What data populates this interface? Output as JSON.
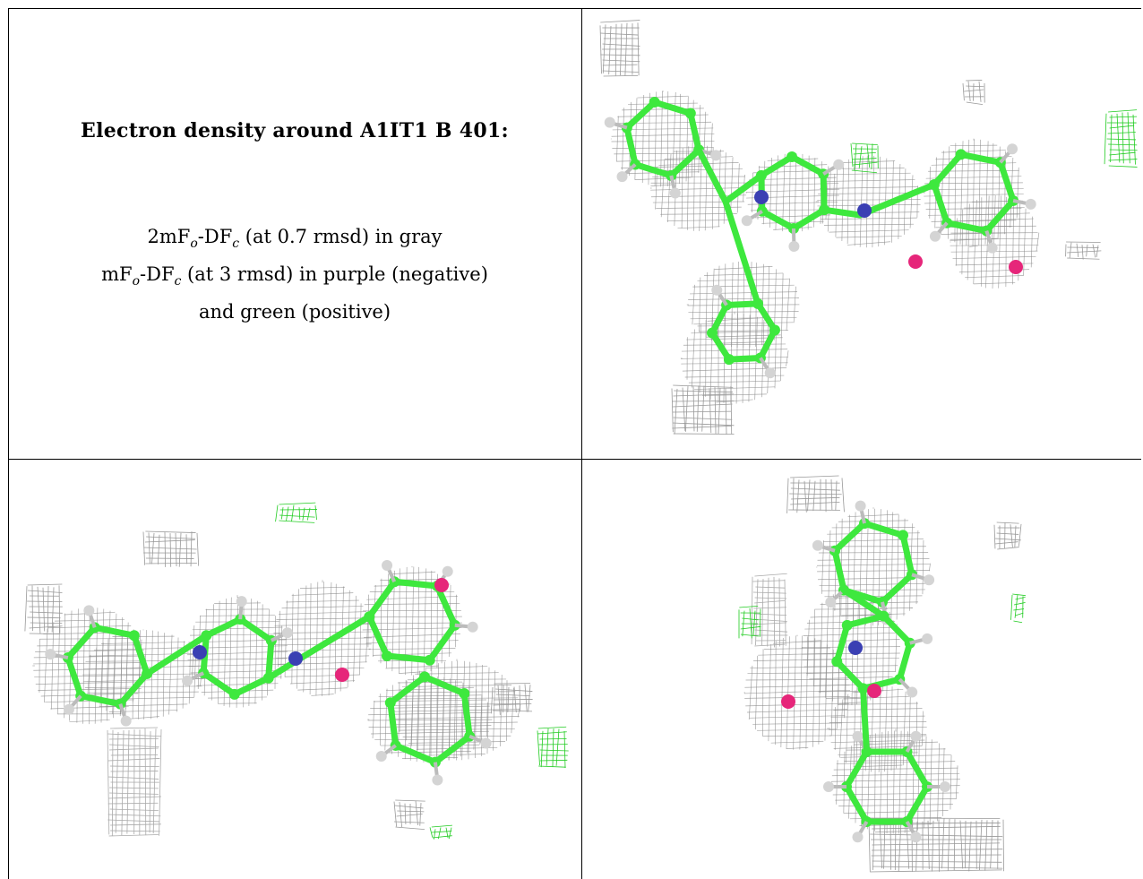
{
  "caption": {
    "title": "Electron density around A1IT1 B 401:",
    "line1_prefix": "2mF",
    "line1_sub1": "o",
    "line1_mid": "-DF",
    "line1_sub2": "c",
    "line1_suffix": " (at 0.7 rmsd) in gray",
    "line2_prefix": "mF",
    "line2_sub1": "o",
    "line2_mid": "-DF",
    "line2_sub2": "c",
    "line2_suffix": " (at 3 rmsd) in purple (negative)",
    "line3": "and green (positive)"
  },
  "colors": {
    "carbon": "#3ee83e",
    "nitrogen": "#3a3fb3",
    "oxygen": "#e6267a",
    "hydrogen": "#d4d4d4",
    "mesh_gray": "#8a8a8a",
    "mesh_green": "#22cc22"
  },
  "panels": [
    {
      "name": "view-top-right"
    },
    {
      "name": "view-bottom-left"
    },
    {
      "name": "view-bottom-right"
    }
  ]
}
